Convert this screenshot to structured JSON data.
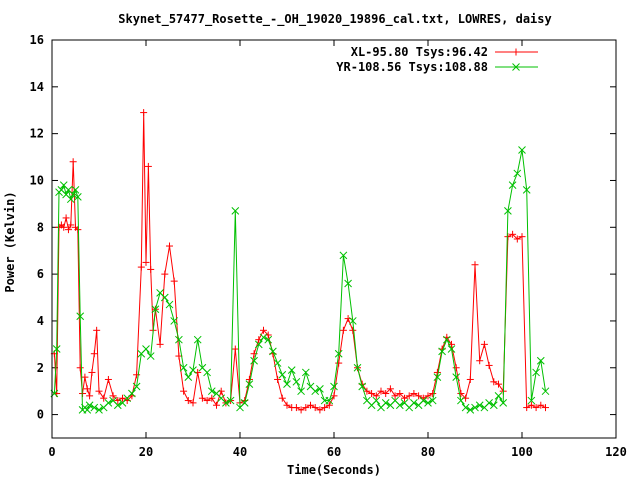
{
  "chart_data": {
    "type": "line",
    "title": "Skynet_57477_Rosette_-_OH_19020_19896_cal.txt, LOWRES, daisy",
    "xlabel": "Time(Seconds)",
    "ylabel": "Power (Kelvin)",
    "xlim": [
      0,
      120
    ],
    "ylim": [
      -1,
      16
    ],
    "xticks": [
      0,
      20,
      40,
      60,
      80,
      100,
      120
    ],
    "yticks": [
      0,
      2,
      4,
      6,
      8,
      10,
      12,
      14,
      16
    ],
    "grid": false,
    "legend_position": "top-right",
    "series": [
      {
        "name": "XL-95.80 Tsys:96.42",
        "color": "#ff0000",
        "marker": "+",
        "points": [
          [
            0.5,
            2.6
          ],
          [
            1,
            0.9
          ],
          [
            1.5,
            8.0
          ],
          [
            2,
            8.1
          ],
          [
            2.5,
            8.0
          ],
          [
            3,
            8.4
          ],
          [
            3.5,
            7.9
          ],
          [
            4,
            8.1
          ],
          [
            4.5,
            10.8
          ],
          [
            5,
            8.0
          ],
          [
            5.5,
            7.9
          ],
          [
            6,
            2.0
          ],
          [
            6.5,
            0.9
          ],
          [
            7,
            1.6
          ],
          [
            7.5,
            1.1
          ],
          [
            8,
            0.8
          ],
          [
            8.5,
            1.8
          ],
          [
            9,
            2.6
          ],
          [
            9.5,
            3.6
          ],
          [
            10,
            1.0
          ],
          [
            11,
            0.7
          ],
          [
            12,
            1.5
          ],
          [
            13,
            0.8
          ],
          [
            14,
            0.6
          ],
          [
            15,
            0.7
          ],
          [
            16,
            0.6
          ],
          [
            17,
            0.8
          ],
          [
            18,
            1.7
          ],
          [
            19,
            6.3
          ],
          [
            19.5,
            12.9
          ],
          [
            20,
            6.5
          ],
          [
            20.5,
            10.6
          ],
          [
            21,
            6.2
          ],
          [
            21.5,
            3.6
          ],
          [
            22,
            4.5
          ],
          [
            23,
            3.0
          ],
          [
            24,
            6.0
          ],
          [
            25,
            7.2
          ],
          [
            26,
            5.7
          ],
          [
            27,
            2.5
          ],
          [
            28,
            1.0
          ],
          [
            29,
            0.6
          ],
          [
            30,
            0.5
          ],
          [
            31,
            1.8
          ],
          [
            32,
            0.7
          ],
          [
            33,
            0.6
          ],
          [
            34,
            0.7
          ],
          [
            35,
            0.4
          ],
          [
            36,
            1.0
          ],
          [
            37,
            0.5
          ],
          [
            38,
            0.6
          ],
          [
            39,
            2.8
          ],
          [
            40,
            0.5
          ],
          [
            41,
            0.6
          ],
          [
            42,
            1.5
          ],
          [
            43,
            2.6
          ],
          [
            44,
            3.2
          ],
          [
            45,
            3.6
          ],
          [
            46,
            3.4
          ],
          [
            47,
            2.6
          ],
          [
            48,
            1.5
          ],
          [
            49,
            0.7
          ],
          [
            50,
            0.4
          ],
          [
            51,
            0.3
          ],
          [
            52,
            0.3
          ],
          [
            53,
            0.2
          ],
          [
            54,
            0.3
          ],
          [
            55,
            0.4
          ],
          [
            56,
            0.3
          ],
          [
            57,
            0.2
          ],
          [
            58,
            0.3
          ],
          [
            59,
            0.4
          ],
          [
            60,
            0.8
          ],
          [
            61,
            2.2
          ],
          [
            62,
            3.6
          ],
          [
            63,
            4.1
          ],
          [
            64,
            3.6
          ],
          [
            65,
            2.0
          ],
          [
            66,
            1.3
          ],
          [
            67,
            1.0
          ],
          [
            68,
            0.9
          ],
          [
            69,
            0.8
          ],
          [
            70,
            1.0
          ],
          [
            71,
            0.9
          ],
          [
            72,
            1.1
          ],
          [
            73,
            0.8
          ],
          [
            74,
            0.9
          ],
          [
            75,
            0.7
          ],
          [
            76,
            0.8
          ],
          [
            77,
            0.9
          ],
          [
            78,
            0.8
          ],
          [
            79,
            0.7
          ],
          [
            80,
            0.8
          ],
          [
            81,
            0.9
          ],
          [
            82,
            1.8
          ],
          [
            83,
            2.8
          ],
          [
            84,
            3.3
          ],
          [
            85,
            3.0
          ],
          [
            86,
            2.0
          ],
          [
            87,
            0.9
          ],
          [
            88,
            0.7
          ],
          [
            89,
            1.5
          ],
          [
            90,
            6.4
          ],
          [
            91,
            2.3
          ],
          [
            92,
            3.0
          ],
          [
            93,
            2.1
          ],
          [
            94,
            1.4
          ],
          [
            95,
            1.3
          ],
          [
            96,
            1.0
          ],
          [
            97,
            7.6
          ],
          [
            98,
            7.7
          ],
          [
            99,
            7.5
          ],
          [
            100,
            7.6
          ],
          [
            101,
            0.3
          ],
          [
            102,
            0.4
          ],
          [
            103,
            0.3
          ],
          [
            104,
            0.4
          ],
          [
            105,
            0.3
          ]
        ]
      },
      {
        "name": "YR-108.56 Tsys:108.88",
        "color": "#00c000",
        "marker": "x",
        "points": [
          [
            0.5,
            0.9
          ],
          [
            1,
            2.8
          ],
          [
            1.5,
            9.5
          ],
          [
            2,
            9.6
          ],
          [
            2.5,
            9.8
          ],
          [
            3,
            9.4
          ],
          [
            3.5,
            9.6
          ],
          [
            4,
            9.2
          ],
          [
            4.5,
            9.4
          ],
          [
            5,
            9.6
          ],
          [
            5.5,
            9.3
          ],
          [
            6,
            4.2
          ],
          [
            6.5,
            0.2
          ],
          [
            7,
            0.3
          ],
          [
            7.5,
            0.2
          ],
          [
            8,
            0.4
          ],
          [
            9,
            0.3
          ],
          [
            10,
            0.2
          ],
          [
            11,
            0.3
          ],
          [
            12,
            0.5
          ],
          [
            13,
            0.6
          ],
          [
            14,
            0.4
          ],
          [
            15,
            0.5
          ],
          [
            16,
            0.7
          ],
          [
            17,
            0.9
          ],
          [
            18,
            1.2
          ],
          [
            19,
            2.6
          ],
          [
            20,
            2.8
          ],
          [
            21,
            2.5
          ],
          [
            22,
            4.5
          ],
          [
            23,
            5.2
          ],
          [
            24,
            5.0
          ],
          [
            25,
            4.7
          ],
          [
            26,
            4.0
          ],
          [
            27,
            3.2
          ],
          [
            28,
            2.0
          ],
          [
            29,
            1.6
          ],
          [
            30,
            1.9
          ],
          [
            31,
            3.2
          ],
          [
            32,
            2.0
          ],
          [
            33,
            1.8
          ],
          [
            34,
            1.0
          ],
          [
            35,
            0.9
          ],
          [
            36,
            0.7
          ],
          [
            37,
            0.5
          ],
          [
            38,
            0.6
          ],
          [
            39,
            8.7
          ],
          [
            40,
            0.3
          ],
          [
            41,
            0.5
          ],
          [
            42,
            1.3
          ],
          [
            43,
            2.3
          ],
          [
            44,
            3.0
          ],
          [
            45,
            3.3
          ],
          [
            46,
            3.2
          ],
          [
            47,
            2.7
          ],
          [
            48,
            2.2
          ],
          [
            49,
            1.7
          ],
          [
            50,
            1.3
          ],
          [
            51,
            1.9
          ],
          [
            52,
            1.4
          ],
          [
            53,
            1.0
          ],
          [
            54,
            1.8
          ],
          [
            55,
            1.2
          ],
          [
            56,
            1.0
          ],
          [
            57,
            1.1
          ],
          [
            58,
            0.6
          ],
          [
            59,
            0.6
          ],
          [
            60,
            1.2
          ],
          [
            61,
            2.6
          ],
          [
            62,
            6.8
          ],
          [
            63,
            5.6
          ],
          [
            64,
            4.0
          ],
          [
            65,
            2.0
          ],
          [
            66,
            1.2
          ],
          [
            67,
            0.6
          ],
          [
            68,
            0.4
          ],
          [
            69,
            0.6
          ],
          [
            70,
            0.3
          ],
          [
            71,
            0.5
          ],
          [
            72,
            0.4
          ],
          [
            73,
            0.6
          ],
          [
            74,
            0.4
          ],
          [
            75,
            0.5
          ],
          [
            76,
            0.3
          ],
          [
            77,
            0.5
          ],
          [
            78,
            0.4
          ],
          [
            79,
            0.6
          ],
          [
            80,
            0.5
          ],
          [
            81,
            0.6
          ],
          [
            82,
            1.6
          ],
          [
            83,
            2.7
          ],
          [
            84,
            3.2
          ],
          [
            85,
            2.8
          ],
          [
            86,
            1.6
          ],
          [
            87,
            0.6
          ],
          [
            88,
            0.3
          ],
          [
            89,
            0.2
          ],
          [
            90,
            0.3
          ],
          [
            91,
            0.4
          ],
          [
            92,
            0.3
          ],
          [
            93,
            0.5
          ],
          [
            94,
            0.4
          ],
          [
            95,
            0.8
          ],
          [
            96,
            0.5
          ],
          [
            97,
            8.7
          ],
          [
            98,
            9.8
          ],
          [
            99,
            10.3
          ],
          [
            100,
            11.3
          ],
          [
            101,
            9.6
          ],
          [
            102,
            0.6
          ],
          [
            103,
            1.8
          ],
          [
            104,
            2.3
          ],
          [
            105,
            1.0
          ]
        ]
      }
    ]
  }
}
